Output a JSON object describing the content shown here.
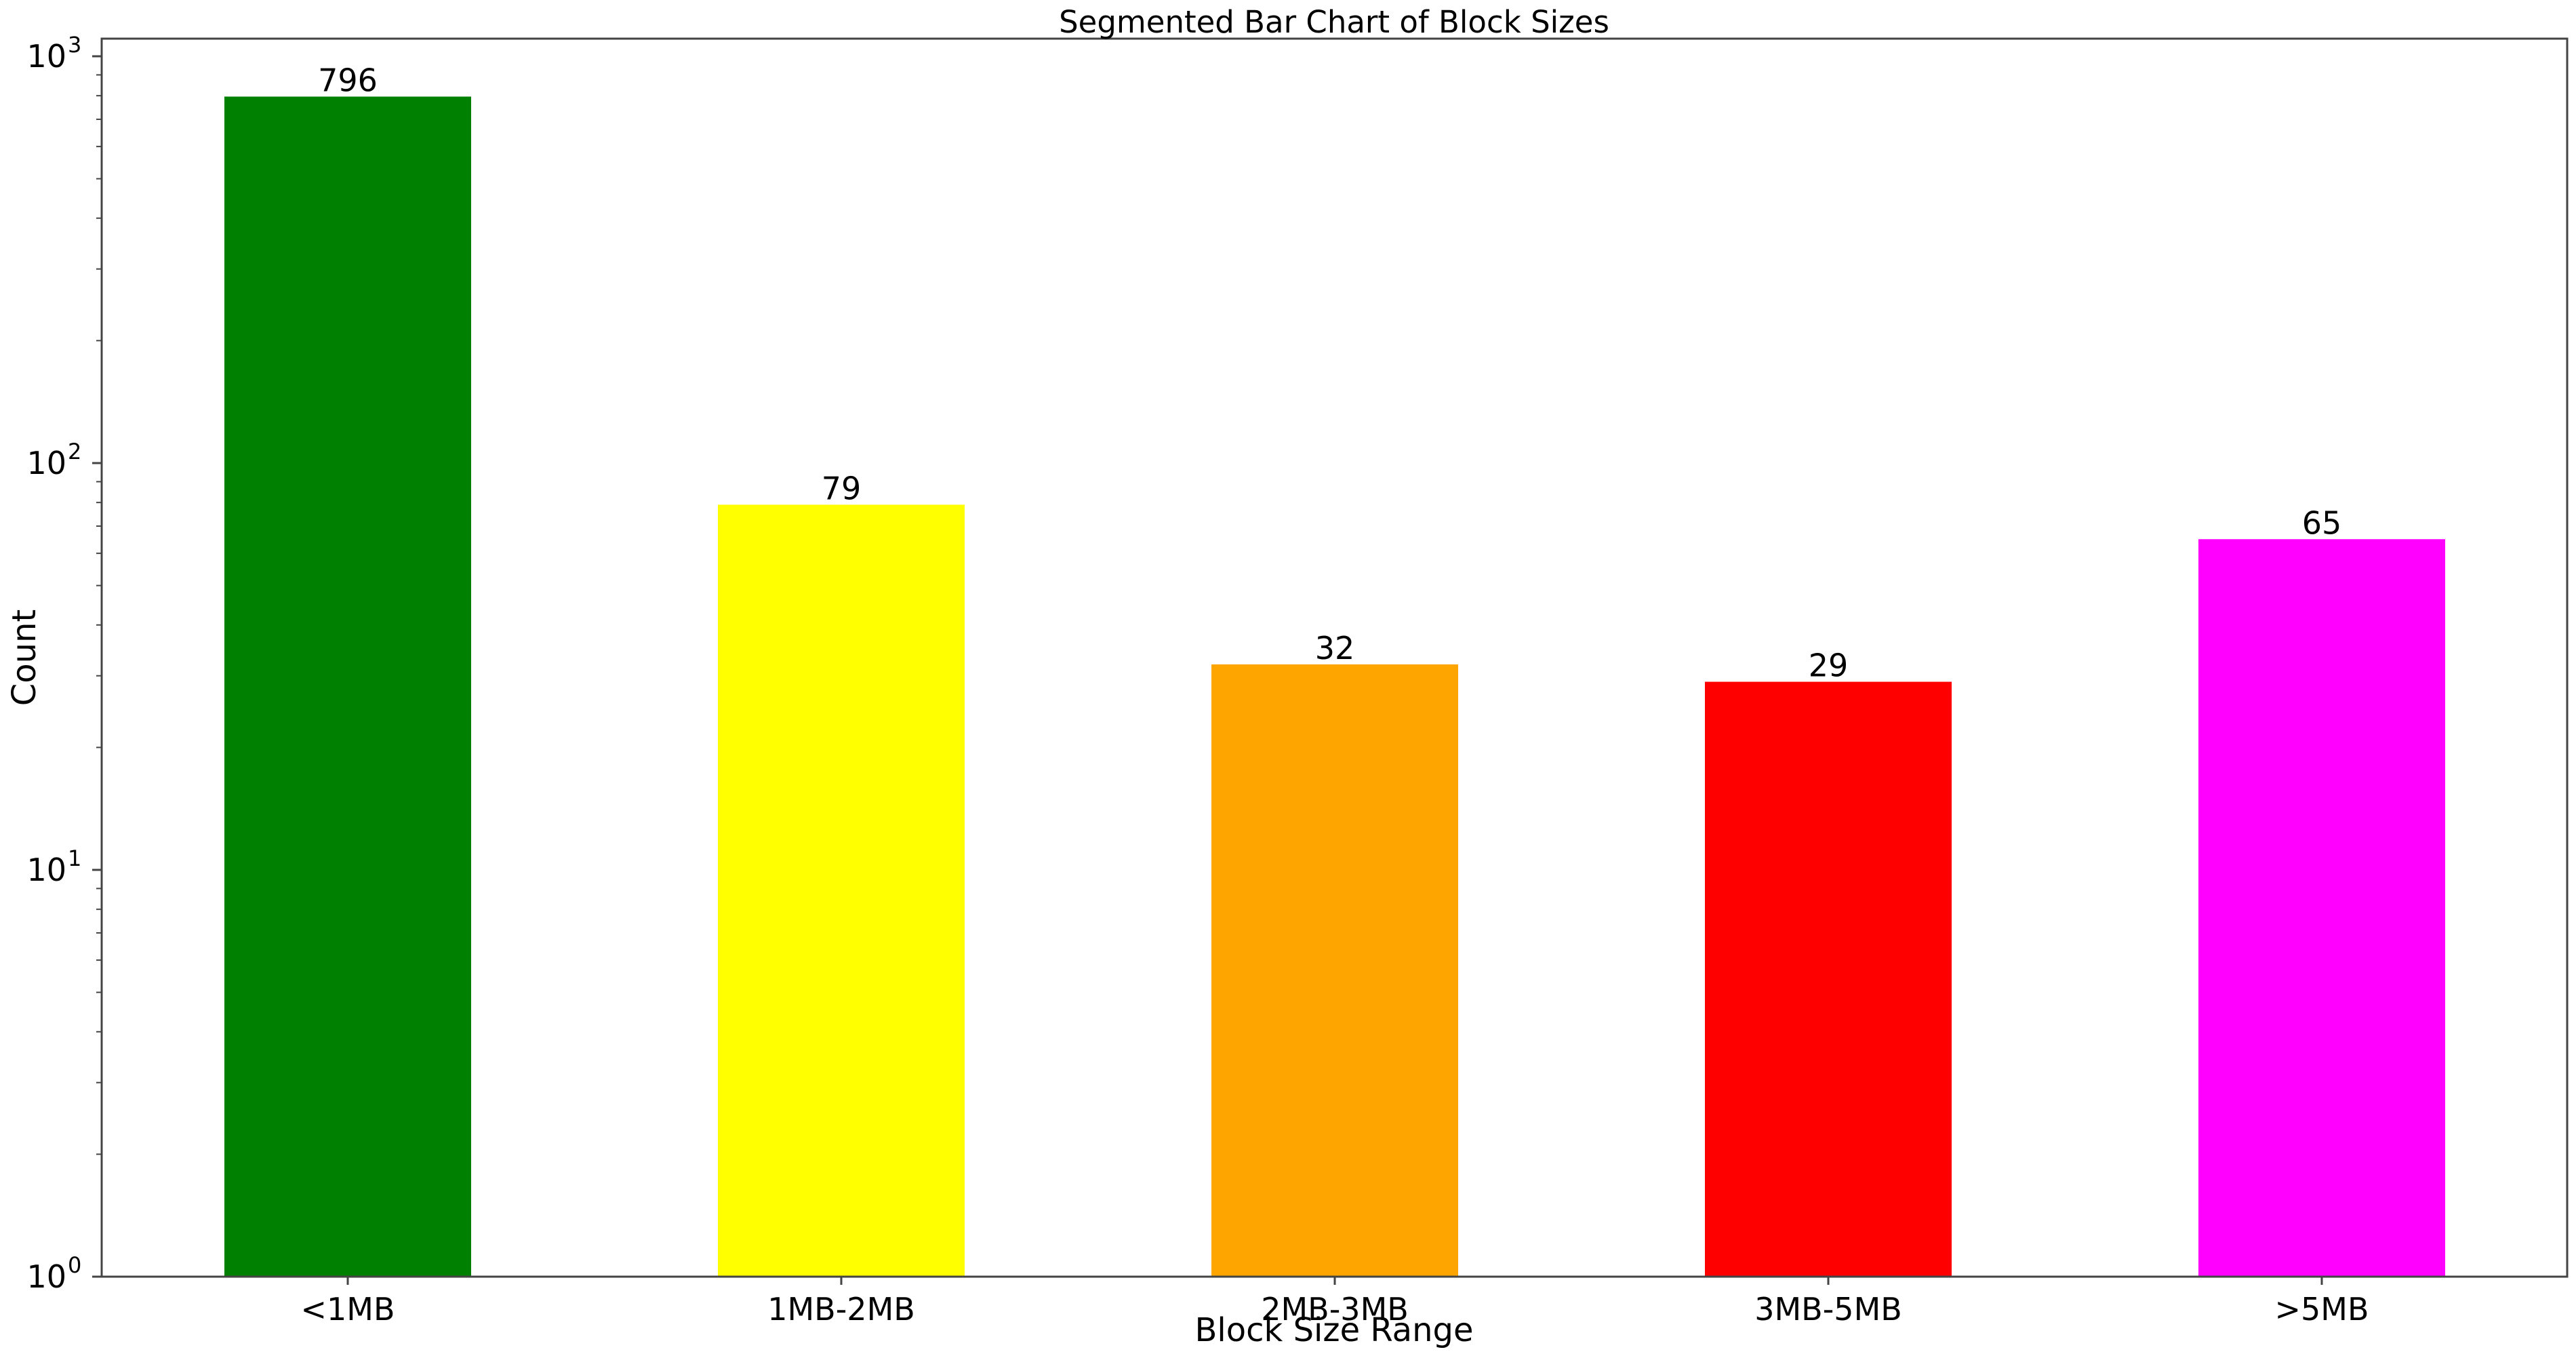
{
  "chart_data": {
    "type": "bar",
    "title": "Segmented Bar Chart of Block Sizes",
    "xlabel": "Block Size Range",
    "ylabel": "Count",
    "yscale": "log",
    "ylim": [
      1,
      1100
    ],
    "categories": [
      "<1MB",
      "1MB-2MB",
      "2MB-3MB",
      "3MB-5MB",
      ">5MB"
    ],
    "values": [
      796,
      79,
      32,
      29,
      65
    ],
    "data_labels": [
      "796",
      "79",
      "32",
      "29",
      "65"
    ],
    "colors": [
      "#008000",
      "#ffff00",
      "#ffa500",
      "#ff0000",
      "#ff00ff"
    ],
    "y_ticks": [
      {
        "value": 1,
        "base": "10",
        "exp": "0"
      },
      {
        "value": 10,
        "base": "10",
        "exp": "1"
      },
      {
        "value": 100,
        "base": "10",
        "exp": "2"
      },
      {
        "value": 1000,
        "base": "10",
        "exp": "3"
      }
    ],
    "grid": false,
    "legend": "none"
  }
}
